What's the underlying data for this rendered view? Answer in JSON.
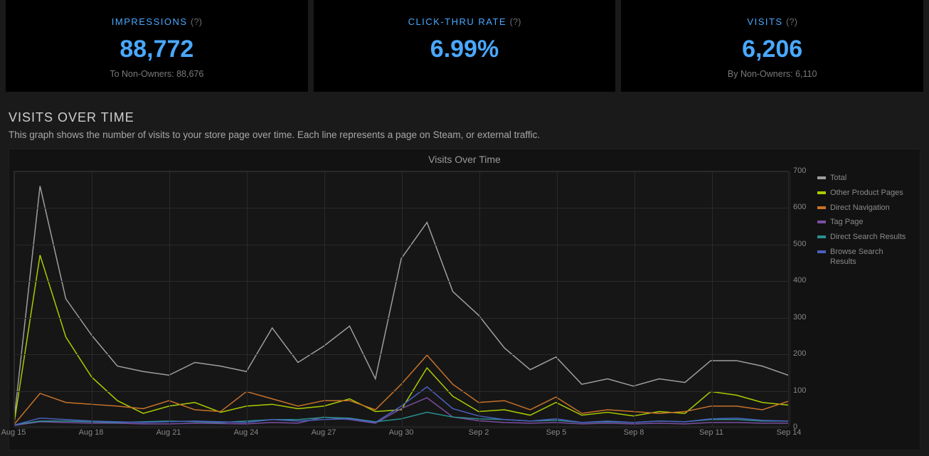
{
  "stats": [
    {
      "title": "IMPRESSIONS",
      "help": "(?)",
      "value": "88,772",
      "sub": "To Non-Owners: 88,676"
    },
    {
      "title": "CLICK-THRU RATE",
      "help": "(?)",
      "value": "6.99%",
      "sub": ""
    },
    {
      "title": "VISITS",
      "help": "(?)",
      "value": "6,206",
      "sub": "By Non-Owners: 6,110"
    }
  ],
  "section": {
    "title": "VISITS OVER TIME",
    "desc": "This graph shows the number of visits to your store page over time. Each line represents a page on Steam, or external traffic."
  },
  "chart": {
    "type": "line",
    "title": "Visits Over Time",
    "plot_bg": "#161616",
    "container_bg": "#121212",
    "grid_color": "#2a2a2a",
    "axis_font_size": 11,
    "title_font_size": 14,
    "y": {
      "min": 0,
      "max": 700,
      "ticks": [
        0,
        100,
        200,
        300,
        400,
        500,
        600,
        700
      ]
    },
    "x_labels": [
      "Aug 15",
      "Aug 18",
      "Aug 21",
      "Aug 24",
      "Aug 27",
      "Aug 30",
      "Sep 2",
      "Sep 5",
      "Sep 8",
      "Sep 11",
      "Sep 14"
    ],
    "x_count": 31,
    "x_tick_every": 3,
    "series": [
      {
        "name": "Total",
        "color": "#9e9e9e",
        "width": 1.5,
        "data": [
          20,
          660,
          350,
          250,
          165,
          150,
          140,
          175,
          165,
          150,
          270,
          175,
          220,
          275,
          130,
          460,
          560,
          370,
          305,
          215,
          155,
          190,
          115,
          130,
          110,
          130,
          120,
          180,
          180,
          165,
          140
        ]
      },
      {
        "name": "Other Product Pages",
        "color": "#aacc00",
        "width": 1.5,
        "data": [
          10,
          470,
          245,
          135,
          70,
          35,
          55,
          65,
          38,
          55,
          60,
          48,
          55,
          75,
          40,
          45,
          160,
          82,
          40,
          45,
          30,
          65,
          30,
          38,
          28,
          40,
          35,
          95,
          85,
          65,
          58
        ]
      },
      {
        "name": "Direct Navigation",
        "color": "#c8722a",
        "width": 1.5,
        "data": [
          5,
          90,
          65,
          60,
          55,
          48,
          70,
          45,
          40,
          95,
          75,
          55,
          70,
          70,
          45,
          115,
          195,
          115,
          65,
          70,
          45,
          80,
          35,
          45,
          40,
          35,
          40,
          55,
          55,
          45,
          68
        ]
      },
      {
        "name": "Tag Page",
        "color": "#7a4ea0",
        "width": 1.5,
        "data": [
          2,
          12,
          10,
          8,
          8,
          6,
          6,
          8,
          7,
          6,
          10,
          8,
          25,
          18,
          8,
          48,
          78,
          25,
          15,
          10,
          8,
          10,
          6,
          8,
          6,
          8,
          6,
          10,
          10,
          8,
          8
        ]
      },
      {
        "name": "Direct Search Results",
        "color": "#2a8f8f",
        "width": 1.5,
        "data": [
          4,
          14,
          14,
          12,
          10,
          12,
          14,
          12,
          10,
          14,
          18,
          18,
          24,
          22,
          12,
          20,
          38,
          25,
          20,
          18,
          14,
          16,
          10,
          12,
          10,
          14,
          12,
          18,
          18,
          14,
          14
        ]
      },
      {
        "name": "Browse Search Results",
        "color": "#4a60c0",
        "width": 1.5,
        "data": [
          3,
          22,
          18,
          14,
          12,
          10,
          12,
          14,
          12,
          10,
          18,
          14,
          18,
          20,
          10,
          55,
          108,
          48,
          28,
          18,
          14,
          20,
          10,
          14,
          10,
          14,
          12,
          20,
          22,
          16,
          14
        ]
      }
    ]
  }
}
